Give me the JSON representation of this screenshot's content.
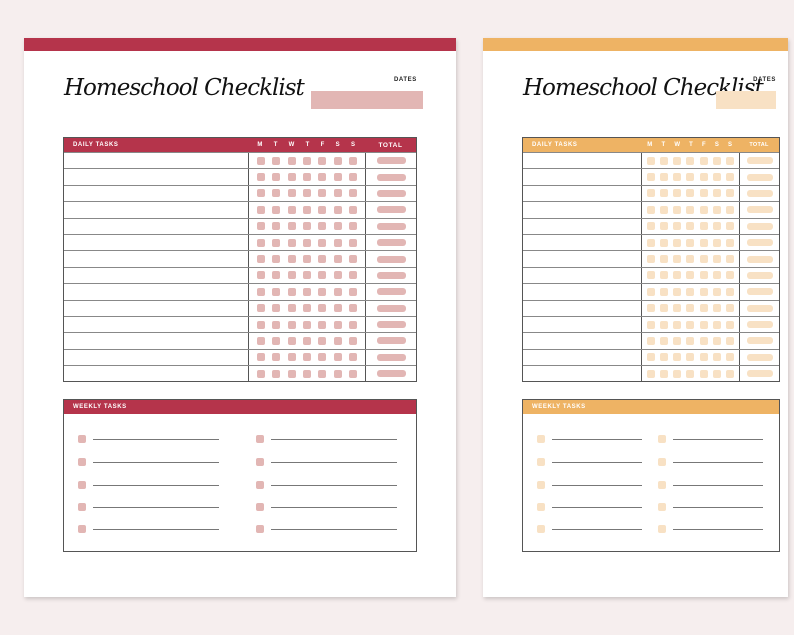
{
  "pages": [
    {
      "title": "Homeschool Checklist",
      "dates_label": "DATES",
      "daily_header": "DAILY TASKS",
      "days": [
        "M",
        "T",
        "W",
        "T",
        "F",
        "S",
        "S"
      ],
      "total_header": "TOTAL",
      "weekly_header": "WEEKLY TASKS",
      "daily_rows": 14,
      "weekly_items": 10,
      "colors": {
        "accent": "#b5344b",
        "light": "#e2b6b4"
      }
    },
    {
      "title": "Homeschool Checklist",
      "dates_label": "DATES",
      "daily_header": "DAILY TASKS",
      "days": [
        "M",
        "T",
        "W",
        "T",
        "F",
        "S",
        "S"
      ],
      "total_header": "TOTAL",
      "weekly_header": "WEEKLY TASKS",
      "daily_rows": 14,
      "weekly_items": 10,
      "colors": {
        "accent": "#eeb364",
        "light": "#f8e1c4"
      }
    }
  ]
}
